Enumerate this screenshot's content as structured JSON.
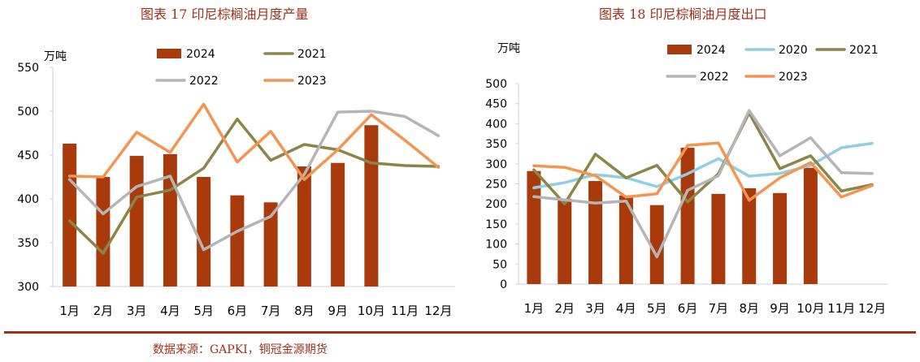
{
  "source": "数据来源：GAPKI，铜冠金源期货",
  "colors": {
    "2024": "#a83a0c",
    "2020": "#8ecfe0",
    "2021": "#8c8548",
    "2022": "#b5b5b5",
    "2023": "#f59450",
    "title": "#a0301a"
  },
  "chart_data": [
    {
      "type": "bar+line",
      "title": "图表 17  印尼棕榈油月度产量",
      "ylabel": "万吨",
      "ylim": [
        300,
        550
      ],
      "yticks": [
        300,
        350,
        400,
        450,
        500,
        550
      ],
      "categories": [
        "1月",
        "2月",
        "3月",
        "4月",
        "5月",
        "6月",
        "7月",
        "8月",
        "9月",
        "10月",
        "11月",
        "12月"
      ],
      "legend": [
        {
          "name": "2024",
          "kind": "bar"
        },
        {
          "name": "2021",
          "kind": "line"
        },
        {
          "name": "2022",
          "kind": "line"
        },
        {
          "name": "2023",
          "kind": "line"
        }
      ],
      "bars": {
        "name": "2024",
        "values": [
          463,
          425,
          449,
          451,
          425,
          404,
          396,
          437,
          441,
          484
        ]
      },
      "lines": [
        {
          "name": "2021",
          "values": [
            375,
            338,
            402,
            410,
            435,
            491,
            444,
            462,
            456,
            441,
            438,
            437
          ]
        },
        {
          "name": "2022",
          "values": [
            422,
            383,
            414,
            426,
            342,
            363,
            380,
            428,
            499,
            500,
            494,
            472
          ]
        },
        {
          "name": "2023",
          "values": [
            426,
            425,
            476,
            453,
            508,
            442,
            477,
            422,
            456,
            496,
            467,
            436
          ]
        }
      ]
    },
    {
      "type": "bar+line",
      "title": "图表 18  印尼棕榈油月度出口",
      "ylabel": "万吨",
      "ylim": [
        0,
        500
      ],
      "yticks": [
        0,
        50,
        100,
        150,
        200,
        250,
        300,
        350,
        400,
        450,
        500
      ],
      "categories": [
        "1月",
        "2月",
        "3月",
        "4月",
        "5月",
        "6月",
        "7月",
        "8月",
        "9月",
        "10月",
        "11月",
        "12月"
      ],
      "legend": [
        {
          "name": "2024",
          "kind": "bar"
        },
        {
          "name": "2020",
          "kind": "line"
        },
        {
          "name": "2021",
          "kind": "line"
        },
        {
          "name": "2022",
          "kind": "line"
        },
        {
          "name": "2023",
          "kind": "line"
        }
      ],
      "bars": {
        "name": "2024",
        "values": [
          282,
          213,
          257,
          221,
          197,
          340,
          225,
          239,
          227,
          290
        ]
      },
      "lines": [
        {
          "name": "2020",
          "values": [
            240,
            253,
            273,
            265,
            243,
            275,
            313,
            269,
            276,
            296,
            340,
            351
          ]
        },
        {
          "name": "2021",
          "values": [
            285,
            200,
            324,
            265,
            296,
            205,
            275,
            427,
            288,
            320,
            232,
            248
          ]
        },
        {
          "name": "2022",
          "values": [
            218,
            210,
            202,
            207,
            68,
            234,
            270,
            433,
            320,
            365,
            278,
            276
          ]
        },
        {
          "name": "2023",
          "values": [
            295,
            291,
            270,
            217,
            225,
            346,
            352,
            209,
            265,
            303,
            217,
            246
          ]
        }
      ]
    }
  ]
}
